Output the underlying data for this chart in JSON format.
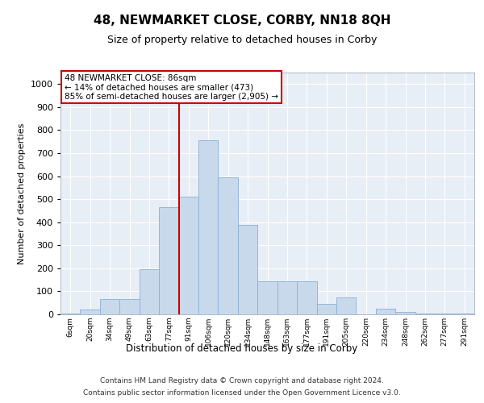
{
  "title": "48, NEWMARKET CLOSE, CORBY, NN18 8QH",
  "subtitle": "Size of property relative to detached houses in Corby",
  "xlabel": "Distribution of detached houses by size in Corby",
  "ylabel": "Number of detached properties",
  "footer_line1": "Contains HM Land Registry data © Crown copyright and database right 2024.",
  "footer_line2": "Contains public sector information licensed under the Open Government Licence v3.0.",
  "annotation_line1": "48 NEWMARKET CLOSE: 86sqm",
  "annotation_line2": "← 14% of detached houses are smaller (473)",
  "annotation_line3": "85% of semi-detached houses are larger (2,905) →",
  "bar_color": "#c8d9ec",
  "bar_edge_color": "#8aafd4",
  "vline_color": "#cc0000",
  "annotation_box_edge_color": "#cc0000",
  "background_color": "#ffffff",
  "plot_bg_color": "#e8eef5",
  "grid_color": "#ffffff",
  "categories": [
    "6sqm",
    "20sqm",
    "34sqm",
    "49sqm",
    "63sqm",
    "77sqm",
    "91sqm",
    "106sqm",
    "120sqm",
    "134sqm",
    "148sqm",
    "163sqm",
    "177sqm",
    "191sqm",
    "205sqm",
    "220sqm",
    "234sqm",
    "248sqm",
    "262sqm",
    "277sqm",
    "291sqm"
  ],
  "values": [
    2,
    20,
    65,
    65,
    195,
    465,
    510,
    755,
    595,
    390,
    145,
    145,
    145,
    45,
    75,
    0,
    25,
    10,
    2,
    2,
    2
  ],
  "vline_position": 6.5,
  "ylim": [
    0,
    1050
  ],
  "yticks": [
    0,
    100,
    200,
    300,
    400,
    500,
    600,
    700,
    800,
    900,
    1000
  ]
}
